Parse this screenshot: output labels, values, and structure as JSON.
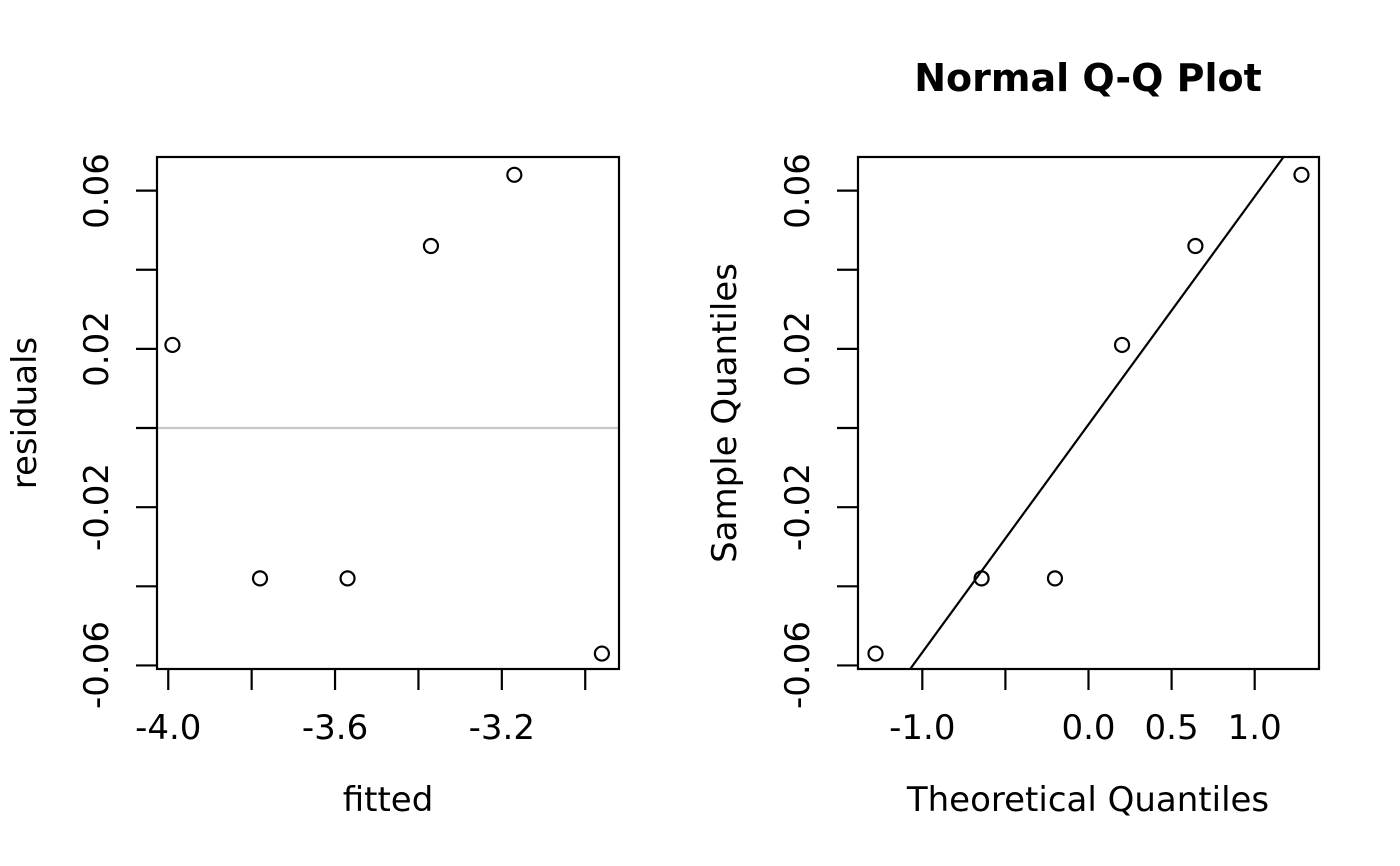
{
  "canvas": {
    "background": "#ffffff",
    "foreground": "#000000"
  },
  "chart_data": [
    {
      "id": "residuals-vs-fitted",
      "type": "scatter",
      "title": "",
      "xlabel": "fitted",
      "ylabel": "residuals",
      "marker": "open-circle",
      "points": [
        [
          -3.99,
          0.021
        ],
        [
          -3.78,
          -0.038
        ],
        [
          -3.57,
          -0.038
        ],
        [
          -3.37,
          0.046
        ],
        [
          -3.17,
          0.064
        ],
        [
          -2.96,
          -0.057
        ]
      ],
      "xlim": [
        -4.027,
        -2.919
      ],
      "ylim": [
        -0.0609,
        0.0685
      ],
      "grid": false,
      "xticks": [
        {
          "v": -4.0,
          "label": "-4.0"
        },
        {
          "v": -3.8,
          "label": ""
        },
        {
          "v": -3.6,
          "label": "-3.6"
        },
        {
          "v": -3.4,
          "label": ""
        },
        {
          "v": -3.2,
          "label": "-3.2"
        },
        {
          "v": -3.0,
          "label": ""
        }
      ],
      "yticks": [
        {
          "v": 0.06,
          "label": "0.06"
        },
        {
          "v": 0.04,
          "label": ""
        },
        {
          "v": 0.02,
          "label": "0.02"
        },
        {
          "v": 0.0,
          "label": ""
        },
        {
          "v": -0.02,
          "label": "-0.02"
        },
        {
          "v": -0.04,
          "label": ""
        },
        {
          "v": -0.06,
          "label": "-0.06"
        }
      ],
      "hline": {
        "y": 0.0,
        "color": "#c8c8c8"
      }
    },
    {
      "id": "normal-qq-plot",
      "type": "scatter",
      "title": "Normal Q-Q Plot",
      "xlabel": "Theoretical Quantiles",
      "ylabel": "Sample Quantiles",
      "marker": "open-circle",
      "points": [
        [
          -1.2816,
          -0.057
        ],
        [
          -0.6433,
          -0.038
        ],
        [
          -0.2019,
          -0.038
        ],
        [
          0.2019,
          0.021
        ],
        [
          0.6433,
          0.046
        ],
        [
          1.2816,
          0.064
        ]
      ],
      "xlim": [
        -1.387,
        1.387
      ],
      "ylim": [
        -0.0609,
        0.0685
      ],
      "grid": false,
      "xticks": [
        {
          "v": -1.0,
          "label": "-1.0"
        },
        {
          "v": -0.5,
          "label": ""
        },
        {
          "v": 0.0,
          "label": "0.0"
        },
        {
          "v": 0.5,
          "label": "0.5"
        },
        {
          "v": 1.0,
          "label": "1.0"
        }
      ],
      "yticks": [
        {
          "v": 0.06,
          "label": "0.06"
        },
        {
          "v": 0.04,
          "label": ""
        },
        {
          "v": 0.02,
          "label": "0.02"
        },
        {
          "v": 0.0,
          "label": ""
        },
        {
          "v": -0.02,
          "label": "-0.02"
        },
        {
          "v": -0.04,
          "label": ""
        },
        {
          "v": -0.06,
          "label": "-0.06"
        }
      ],
      "refline": {
        "slope": 0.0576,
        "intercept": 0.0009,
        "color": "#000000"
      }
    }
  ]
}
